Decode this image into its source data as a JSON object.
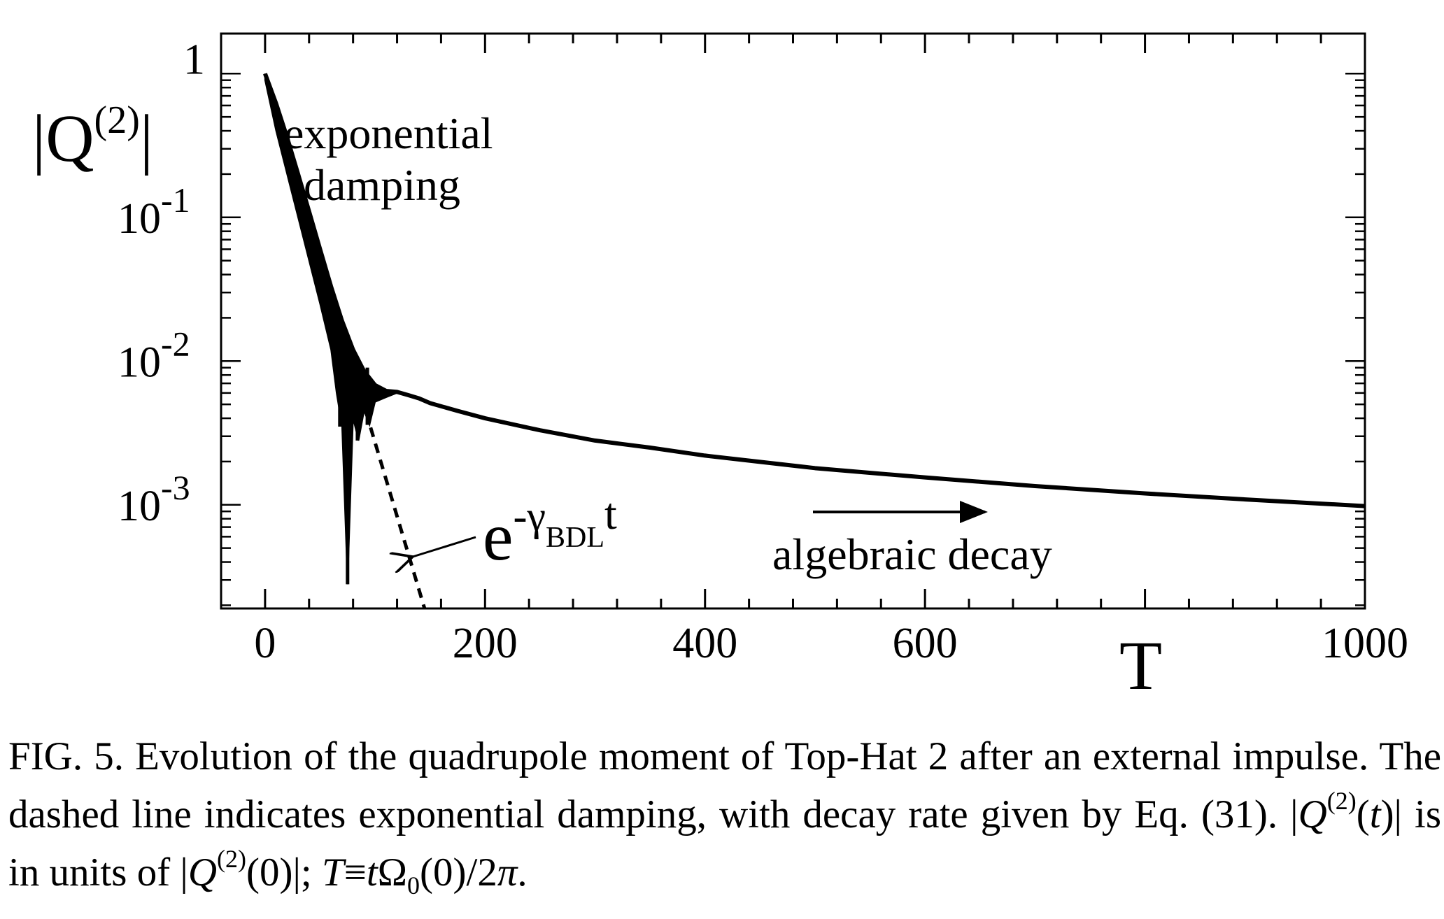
{
  "chart_data": {
    "type": "line",
    "y_scale": "log",
    "xlim": [
      -40,
      1000
    ],
    "ylim": [
      0.00019,
      1.9
    ],
    "grid": false,
    "xlabel": "T",
    "ylabel": {
      "base": "|Q",
      "sup": "(2)",
      "end": "|"
    },
    "x_ticks": [
      {
        "value": 0,
        "label": "0"
      },
      {
        "value": 200,
        "label": "200"
      },
      {
        "value": 400,
        "label": "400"
      },
      {
        "value": 600,
        "label": "600"
      },
      {
        "value": 1000,
        "label": "1000"
      }
    ],
    "y_ticks": [
      {
        "value": 1,
        "base": "1",
        "exp": ""
      },
      {
        "value": 0.1,
        "base": "10",
        "exp": "-1"
      },
      {
        "value": 0.01,
        "base": "10",
        "exp": "-2"
      },
      {
        "value": 0.001,
        "base": "10",
        "exp": "-3"
      }
    ],
    "series": [
      {
        "style": "solid",
        "envelope_upper": {
          "x": [
            0,
            10,
            20,
            30,
            40,
            50,
            60,
            70,
            80,
            90,
            100,
            110,
            120,
            130,
            140,
            150,
            175,
            200,
            250,
            300,
            350,
            400,
            500,
            600,
            700,
            800,
            900,
            1000
          ],
          "y": [
            1.0,
            0.62,
            0.36,
            0.2,
            0.11,
            0.06,
            0.033,
            0.019,
            0.012,
            0.0085,
            0.0068,
            0.0062,
            0.0061,
            0.0058,
            0.0055,
            0.0051,
            0.0045,
            0.004,
            0.0033,
            0.0028,
            0.0025,
            0.0022,
            0.0018,
            0.00155,
            0.00135,
            0.0012,
            0.00108,
            0.00098
          ]
        },
        "envelope_lower": {
          "x": [
            0,
            10,
            20,
            30,
            40,
            50,
            60,
            65,
            70,
            75,
            80,
            85,
            90,
            95,
            100,
            110,
            120
          ],
          "y": [
            0.9,
            0.4,
            0.2,
            0.1,
            0.05,
            0.025,
            0.012,
            0.006,
            0.0035,
            0.00028,
            0.004,
            0.0028,
            0.0045,
            0.0036,
            0.0052,
            0.0056,
            0.006
          ]
        }
      },
      {
        "style": "dashed",
        "x": [
          0,
          145
        ],
        "y": [
          1.0,
          0.00019
        ]
      }
    ],
    "annotations": {
      "exponential_line1": "exponential",
      "exponential_line2": "damping",
      "formula_base": "e",
      "formula_exp": "-γ",
      "formula_sub": "BDL",
      "formula_t": "t",
      "algebraic": "algebraic decay"
    }
  },
  "caption": {
    "seg1": "FIG. 5. Evolution of the quadrupole moment of Top-Hat 2 after an external impulse. The dashed line indicates exponential damping, with decay rate given by Eq. (31). |",
    "q1": "Q",
    "sup1": "(2)",
    "seg2": "(",
    "t1": "t",
    "seg3": ")| is in units of |",
    "q2": "Q",
    "sup2": "(2)",
    "seg4": "(0)|; ",
    "T": "T",
    "equiv": "≡",
    "t2": "t",
    "omega": "Ω",
    "sub0": "0",
    "seg5": "(0)/2",
    "pi": "π",
    "seg6": "."
  }
}
